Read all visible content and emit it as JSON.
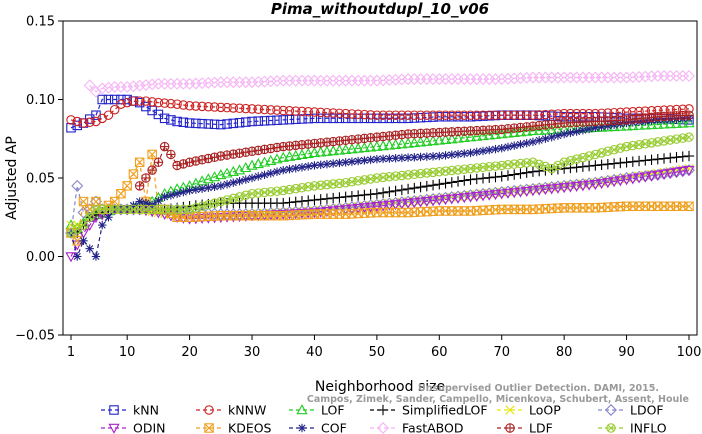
{
  "chart_data": {
    "type": "line",
    "title": "Pima_withoutdupl_10_v06",
    "xlabel": "Neighborhood size",
    "ylabel": "Adjusted AP",
    "xlim": [
      1,
      100
    ],
    "ylim": [
      -0.05,
      0.15
    ],
    "xticks": [
      1,
      10,
      20,
      30,
      40,
      50,
      60,
      70,
      80,
      90,
      100
    ],
    "yticks": [
      -0.05,
      0.0,
      0.05,
      0.1,
      0.15
    ],
    "ytick_labels": [
      "−0.05",
      "0.00",
      "0.05",
      "0.10",
      "0.15"
    ],
    "grid": false,
    "legend_position": "bottom",
    "watermark": [
      "Unsupervised Outlier Detection. DAMI, 2015.",
      "Campos, Zimek, Sander, Campello, Micenkova, Schubert, Assent, Houle"
    ],
    "series": [
      {
        "name": "kNN",
        "color": "#2222cc",
        "marker": "square",
        "x": [
          1,
          3,
          5,
          6,
          8,
          10,
          12,
          14,
          16,
          18,
          20,
          25,
          30,
          35,
          40,
          45,
          50,
          55,
          60,
          65,
          70,
          75,
          80,
          85,
          90,
          95,
          100
        ],
        "y": [
          0.082,
          0.085,
          0.09,
          0.1,
          0.1,
          0.1,
          0.098,
          0.093,
          0.088,
          0.086,
          0.085,
          0.084,
          0.086,
          0.087,
          0.088,
          0.088,
          0.088,
          0.088,
          0.089,
          0.089,
          0.09,
          0.09,
          0.089,
          0.089,
          0.088,
          0.088,
          0.087
        ]
      },
      {
        "name": "kNNW",
        "color": "#cc2222",
        "marker": "circle",
        "x": [
          1,
          3,
          5,
          7,
          9,
          11,
          13,
          15,
          18,
          20,
          25,
          30,
          35,
          40,
          45,
          50,
          55,
          60,
          65,
          70,
          75,
          80,
          85,
          90,
          95,
          100
        ],
        "y": [
          0.087,
          0.085,
          0.086,
          0.09,
          0.097,
          0.099,
          0.099,
          0.098,
          0.097,
          0.096,
          0.095,
          0.094,
          0.093,
          0.092,
          0.091,
          0.09,
          0.09,
          0.09,
          0.09,
          0.09,
          0.09,
          0.091,
          0.091,
          0.092,
          0.093,
          0.094
        ]
      },
      {
        "name": "LOF",
        "color": "#22cc22",
        "marker": "triangle-up",
        "x": [
          1,
          2,
          4,
          6,
          8,
          10,
          12,
          14,
          16,
          18,
          20,
          22,
          25,
          28,
          30,
          35,
          40,
          45,
          50,
          55,
          60,
          65,
          70,
          75,
          80,
          85,
          90,
          95,
          100
        ],
        "y": [
          0.02,
          0.018,
          0.025,
          0.028,
          0.03,
          0.03,
          0.032,
          0.035,
          0.04,
          0.043,
          0.045,
          0.048,
          0.052,
          0.055,
          0.058,
          0.063,
          0.066,
          0.068,
          0.07,
          0.072,
          0.074,
          0.076,
          0.078,
          0.08,
          0.081,
          0.082,
          0.083,
          0.084,
          0.085
        ]
      },
      {
        "name": "SimplifiedLOF",
        "color": "#000000",
        "marker": "plus",
        "x": [
          1,
          2,
          4,
          6,
          8,
          10,
          12,
          14,
          16,
          18,
          20,
          22,
          25,
          28,
          30,
          35,
          40,
          45,
          50,
          55,
          60,
          65,
          70,
          75,
          80,
          85,
          90,
          95,
          100
        ],
        "y": [
          0.015,
          0.015,
          0.025,
          0.028,
          0.03,
          0.03,
          0.03,
          0.03,
          0.03,
          0.031,
          0.032,
          0.033,
          0.034,
          0.034,
          0.034,
          0.034,
          0.036,
          0.038,
          0.04,
          0.043,
          0.046,
          0.049,
          0.051,
          0.054,
          0.056,
          0.058,
          0.06,
          0.062,
          0.064
        ]
      },
      {
        "name": "LoOP",
        "color": "#e6e600",
        "marker": "x",
        "x": [
          1,
          3,
          5,
          8,
          10,
          12,
          15,
          18,
          20,
          25,
          30,
          35,
          40,
          45,
          50,
          55,
          60,
          65,
          70,
          75,
          80,
          85,
          90,
          95,
          100
        ],
        "y": [
          0.02,
          0.02,
          0.03,
          0.03,
          0.03,
          0.03,
          0.028,
          0.026,
          0.025,
          0.026,
          0.027,
          0.028,
          0.029,
          0.031,
          0.033,
          0.035,
          0.037,
          0.039,
          0.041,
          0.043,
          0.045,
          0.047,
          0.05,
          0.053,
          0.056
        ]
      },
      {
        "name": "LDOF",
        "color": "#8888cc",
        "marker": "diamond",
        "x": [
          1,
          2,
          3,
          4,
          5,
          6,
          8,
          10,
          12,
          15,
          18,
          20,
          25,
          30,
          35,
          40,
          45,
          50,
          55,
          60,
          65,
          70,
          75,
          80,
          85,
          90,
          95,
          100
        ],
        "y": [
          0.015,
          0.045,
          0.028,
          0.03,
          0.035,
          0.03,
          0.03,
          0.03,
          0.03,
          0.03,
          0.03,
          0.028,
          0.027,
          0.027,
          0.028,
          0.029,
          0.031,
          0.033,
          0.035,
          0.037,
          0.039,
          0.041,
          0.043,
          0.045,
          0.047,
          0.05,
          0.052,
          0.055
        ]
      },
      {
        "name": "ODIN",
        "color": "#aa22cc",
        "marker": "triangle-down",
        "x": [
          1,
          3,
          5,
          8,
          10,
          12,
          15,
          18,
          20,
          25,
          30,
          35,
          40,
          45,
          50,
          55,
          60,
          65,
          70,
          75,
          80,
          85,
          90,
          95,
          100
        ],
        "y": [
          0.0,
          0.015,
          0.025,
          0.03,
          0.03,
          0.03,
          0.028,
          0.025,
          0.024,
          0.025,
          0.026,
          0.027,
          0.028,
          0.03,
          0.032,
          0.034,
          0.036,
          0.038,
          0.04,
          0.042,
          0.044,
          0.046,
          0.049,
          0.052,
          0.055
        ]
      },
      {
        "name": "KDEOS",
        "color": "#f0a020",
        "marker": "square-x",
        "x": [
          1,
          2,
          3,
          4,
          5,
          6,
          8,
          10,
          12,
          13,
          14,
          15,
          16,
          18,
          20,
          25,
          30,
          35,
          40,
          45,
          50,
          55,
          60,
          65,
          70,
          75,
          80,
          85,
          90,
          95,
          100
        ],
        "y": [
          0.015,
          0.01,
          0.035,
          0.03,
          0.035,
          0.03,
          0.035,
          0.045,
          0.06,
          0.035,
          0.065,
          0.03,
          0.03,
          0.025,
          0.025,
          0.026,
          0.026,
          0.026,
          0.027,
          0.027,
          0.028,
          0.028,
          0.029,
          0.029,
          0.03,
          0.03,
          0.031,
          0.031,
          0.032,
          0.032,
          0.032
        ]
      },
      {
        "name": "COF",
        "color": "#222288",
        "marker": "asterisk",
        "x": [
          1,
          2,
          3,
          4,
          5,
          6,
          8,
          10,
          12,
          14,
          16,
          18,
          20,
          25,
          30,
          35,
          40,
          45,
          50,
          55,
          60,
          65,
          70,
          75,
          80,
          85,
          90,
          95,
          100
        ],
        "y": [
          0.015,
          0.0,
          0.01,
          0.005,
          0.0,
          0.02,
          0.03,
          0.03,
          0.035,
          0.033,
          0.038,
          0.04,
          0.042,
          0.045,
          0.05,
          0.055,
          0.058,
          0.06,
          0.062,
          0.063,
          0.064,
          0.066,
          0.069,
          0.073,
          0.078,
          0.082,
          0.085,
          0.087,
          0.088
        ]
      },
      {
        "name": "FastABOD",
        "color": "#f5b5f5",
        "marker": "diamond",
        "x": [
          4,
          5,
          6,
          8,
          10,
          15,
          20,
          25,
          30,
          35,
          40,
          45,
          50,
          55,
          60,
          65,
          70,
          75,
          80,
          85,
          90,
          95,
          100
        ],
        "y": [
          0.109,
          0.105,
          0.107,
          0.108,
          0.108,
          0.11,
          0.11,
          0.111,
          0.111,
          0.112,
          0.112,
          0.112,
          0.112,
          0.113,
          0.113,
          0.113,
          0.113,
          0.114,
          0.114,
          0.114,
          0.114,
          0.115,
          0.115
        ]
      },
      {
        "name": "LDF",
        "color": "#aa2222",
        "marker": "circle-plus",
        "x": [
          12,
          13,
          14,
          15,
          16,
          17,
          18,
          20,
          25,
          30,
          35,
          40,
          45,
          50,
          55,
          60,
          65,
          70,
          75,
          80,
          85,
          90,
          95,
          100
        ],
        "y": [
          0.045,
          0.05,
          0.055,
          0.06,
          0.07,
          0.065,
          0.058,
          0.06,
          0.064,
          0.067,
          0.07,
          0.072,
          0.074,
          0.076,
          0.078,
          0.079,
          0.08,
          0.081,
          0.083,
          0.085,
          0.086,
          0.087,
          0.089,
          0.09
        ]
      },
      {
        "name": "INFLO",
        "color": "#99cc33",
        "marker": "circle-x",
        "x": [
          1,
          3,
          5,
          8,
          10,
          12,
          15,
          18,
          20,
          25,
          30,
          35,
          40,
          45,
          50,
          55,
          60,
          65,
          70,
          75,
          78,
          80,
          85,
          90,
          95,
          100
        ],
        "y": [
          0.015,
          0.02,
          0.03,
          0.03,
          0.03,
          0.03,
          0.03,
          0.03,
          0.03,
          0.035,
          0.04,
          0.042,
          0.045,
          0.047,
          0.05,
          0.052,
          0.054,
          0.056,
          0.058,
          0.06,
          0.056,
          0.06,
          0.065,
          0.07,
          0.073,
          0.076
        ]
      }
    ]
  }
}
